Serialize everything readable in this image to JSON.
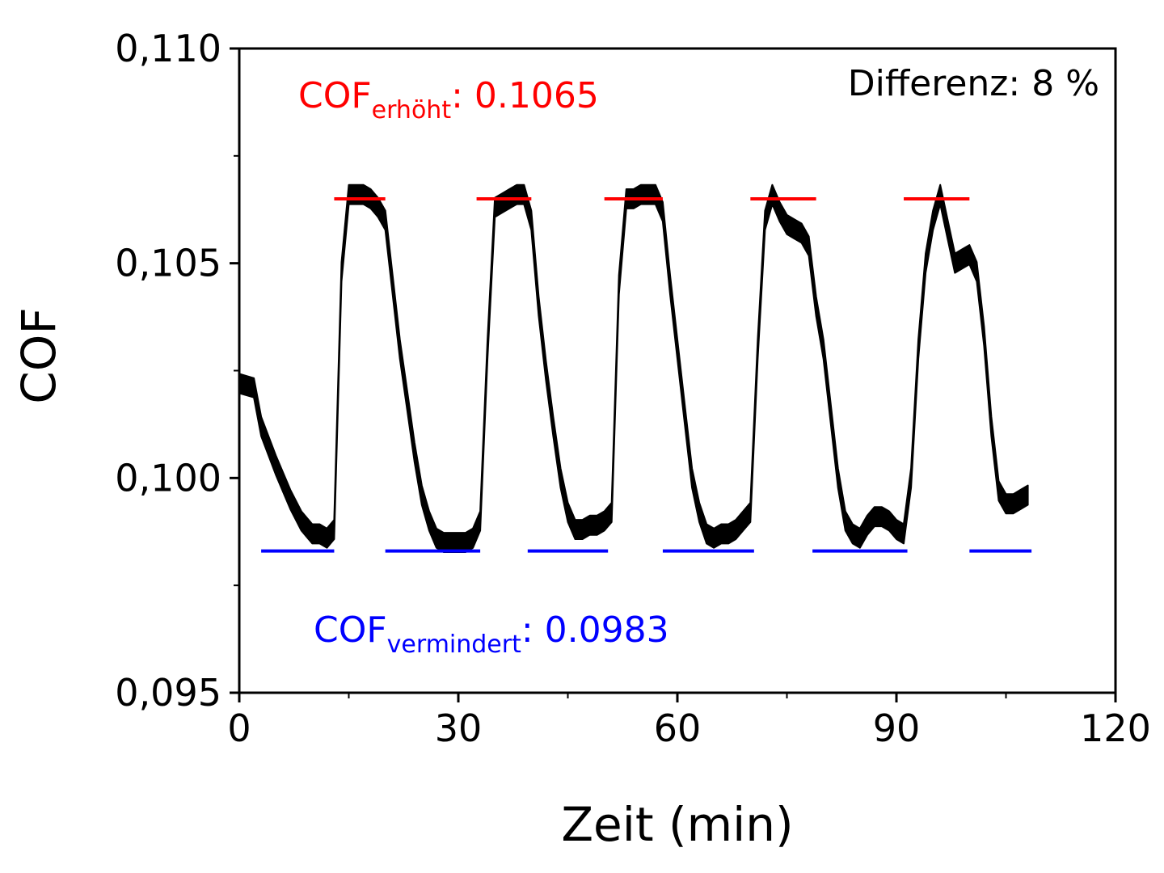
{
  "chart_data": {
    "type": "line",
    "xlabel": "Zeit (min)",
    "ylabel": "COF",
    "xlim": [
      0,
      120
    ],
    "ylim": [
      0.095,
      0.11
    ],
    "x_ticks": [
      0,
      30,
      60,
      90,
      120
    ],
    "x_tick_labels": [
      "0",
      "30",
      "60",
      "90",
      "120"
    ],
    "y_ticks": [
      0.095,
      0.1,
      0.105,
      0.11
    ],
    "y_tick_labels": [
      "0,095",
      "0,100",
      "0,105",
      "0,110"
    ],
    "grid": false,
    "series": [
      {
        "color": "#000000",
        "x": [
          0,
          2,
          3,
          5,
          7,
          8.5,
          10,
          11,
          12,
          13,
          14,
          15,
          16,
          17,
          18,
          19,
          20,
          21,
          22,
          23,
          24,
          25,
          26,
          27,
          28,
          29,
          30,
          31,
          32,
          33,
          34,
          35,
          36,
          37,
          38,
          39,
          40,
          41,
          42,
          43,
          44,
          45,
          46,
          47,
          48,
          49,
          50,
          51,
          52,
          53,
          54,
          55,
          56,
          57,
          58,
          59,
          60,
          61,
          62,
          63,
          64,
          65,
          66,
          67,
          68,
          69,
          70,
          71,
          72,
          73,
          74,
          75,
          76,
          77,
          78,
          79,
          80,
          81,
          82,
          83,
          84,
          85,
          86,
          87,
          88,
          89,
          90,
          91,
          92,
          93,
          94,
          95,
          96,
          97,
          98,
          99,
          100,
          101,
          102,
          103,
          104,
          105,
          106,
          107,
          108
        ],
        "y": [
          0.1022,
          0.1021,
          0.1012,
          0.1003,
          0.0995,
          0.099,
          0.0987,
          0.0987,
          0.0986,
          0.0988,
          0.1048,
          0.1066,
          0.1066,
          0.1066,
          0.1065,
          0.1063,
          0.106,
          0.1045,
          0.103,
          0.1018,
          0.1006,
          0.0996,
          0.099,
          0.0986,
          0.0985,
          0.0985,
          0.0985,
          0.0985,
          0.0986,
          0.099,
          0.103,
          0.1063,
          0.1064,
          0.1065,
          0.1066,
          0.1066,
          0.106,
          0.104,
          0.1025,
          0.1012,
          0.1,
          0.0992,
          0.0988,
          0.0988,
          0.0989,
          0.0989,
          0.099,
          0.0992,
          0.1045,
          0.1065,
          0.1065,
          0.1066,
          0.1066,
          0.1066,
          0.1062,
          0.1045,
          0.103,
          0.1015,
          0.1,
          0.0992,
          0.0987,
          0.0986,
          0.0987,
          0.0987,
          0.0988,
          0.099,
          0.0992,
          0.103,
          0.106,
          0.1066,
          0.1062,
          0.1059,
          0.1058,
          0.1057,
          0.1054,
          0.104,
          0.103,
          0.1015,
          0.1,
          0.099,
          0.0987,
          0.0986,
          0.0989,
          0.0991,
          0.0991,
          0.099,
          0.0988,
          0.0987,
          0.1,
          0.103,
          0.105,
          0.106,
          0.1066,
          0.1058,
          0.105,
          0.1051,
          0.1052,
          0.1048,
          0.1033,
          0.1012,
          0.0997,
          0.0994,
          0.0994,
          0.0995,
          0.0996
        ],
        "band": 0.00045
      }
    ],
    "reference_lines": [
      {
        "color": "#ff0000",
        "y": 0.1065,
        "segments": [
          [
            13,
            20
          ],
          [
            32.5,
            40
          ],
          [
            50,
            58
          ],
          [
            70,
            79
          ],
          [
            91,
            100
          ]
        ]
      },
      {
        "color": "#0000ff",
        "y": 0.0983,
        "segments": [
          [
            3,
            13
          ],
          [
            20,
            33
          ],
          [
            39.5,
            50.5
          ],
          [
            58,
            70.5
          ],
          [
            78.5,
            91.5
          ],
          [
            100,
            108.5
          ]
        ]
      }
    ],
    "annotations": {
      "red": {
        "main": "COF",
        "sub": "erhöht",
        "value": ": 0.1065",
        "color": "#ff0000"
      },
      "blue": {
        "main": "COF",
        "sub": "vermindert",
        "value": ": 0.0983",
        "color": "#0000ff"
      },
      "difference": "Differenz: 8 %"
    }
  }
}
